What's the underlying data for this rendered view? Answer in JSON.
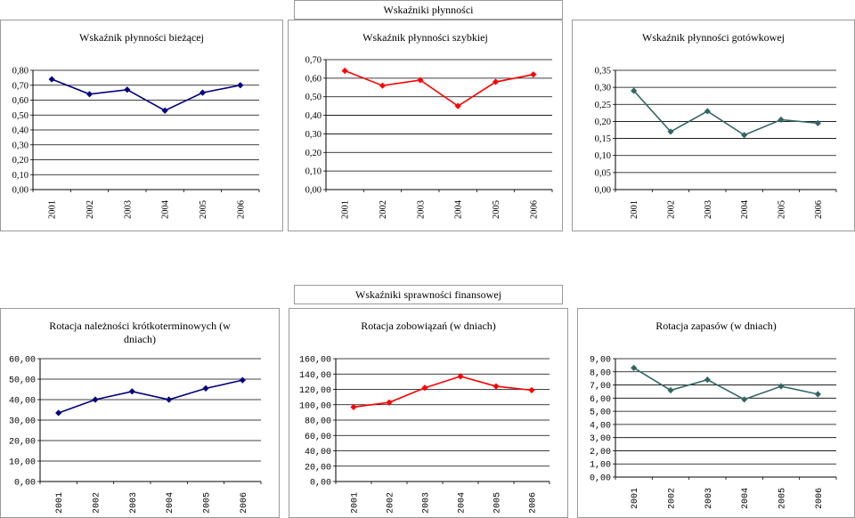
{
  "sections": [
    {
      "title": "Wskaźniki płynności"
    },
    {
      "title": "Wskaźniki sprawności finansowej"
    }
  ],
  "chart_data": [
    {
      "type": "line",
      "title": "Wskaźnik płynności bieżącej",
      "xlabel": "",
      "ylabel": "",
      "categories": [
        "2001",
        "2002",
        "2003",
        "2004",
        "2005",
        "2006"
      ],
      "values": [
        0.74,
        0.64,
        0.67,
        0.53,
        0.65,
        0.7
      ],
      "ylim": [
        0,
        0.8
      ],
      "yticks": [
        "0,00",
        "0,10",
        "0,20",
        "0,30",
        "0,40",
        "0,50",
        "0,60",
        "0,70",
        "0,80"
      ],
      "color": "#000080",
      "grid": true
    },
    {
      "type": "line",
      "title": "Wskaźnik płynności szybkiej",
      "xlabel": "",
      "ylabel": "",
      "categories": [
        "2001",
        "2002",
        "2003",
        "2004",
        "2005",
        "2006"
      ],
      "values": [
        0.64,
        0.56,
        0.59,
        0.45,
        0.58,
        0.62
      ],
      "ylim": [
        0,
        0.7
      ],
      "yticks": [
        "0,00",
        "0,10",
        "0,20",
        "0,30",
        "0,40",
        "0,50",
        "0,60",
        "0,70"
      ],
      "color": "#ff0000",
      "grid": true
    },
    {
      "type": "line",
      "title": "Wskaźnik płynności gotówkowej",
      "xlabel": "",
      "ylabel": "",
      "categories": [
        "2001",
        "2002",
        "2003",
        "2004",
        "2005",
        "2006"
      ],
      "values": [
        0.29,
        0.17,
        0.23,
        0.16,
        0.205,
        0.195
      ],
      "ylim": [
        0,
        0.35
      ],
      "yticks": [
        "0,00",
        "0,05",
        "0,10",
        "0,15",
        "0,20",
        "0,25",
        "0,30",
        "0,35"
      ],
      "color": "#336666",
      "grid": true
    },
    {
      "type": "line",
      "title": "Rotacja należności krótkoterminowych (w dniach)",
      "xlabel": "",
      "ylabel": "",
      "categories": [
        "2001",
        "2002",
        "2003",
        "2004",
        "2005",
        "2006"
      ],
      "values": [
        33.5,
        40,
        44,
        40,
        45.5,
        49.5
      ],
      "ylim": [
        0,
        60
      ],
      "yticks": [
        "0,00",
        "10,00",
        "20,00",
        "30,00",
        "40,00",
        "50,00",
        "60,00"
      ],
      "color": "#000080",
      "grid": true
    },
    {
      "type": "line",
      "title": "Rotacja zobowiązań (w dniach)",
      "xlabel": "",
      "ylabel": "",
      "categories": [
        "2001",
        "2002",
        "2003",
        "2004",
        "2005",
        "2006"
      ],
      "values": [
        97,
        103,
        122,
        137,
        124,
        119
      ],
      "ylim": [
        0,
        160
      ],
      "yticks": [
        "0,00",
        "20,00",
        "40,00",
        "60,00",
        "80,00",
        "100,00",
        "120,00",
        "140,00",
        "160,00"
      ],
      "color": "#ff0000",
      "grid": true
    },
    {
      "type": "line",
      "title": "Rotacja zapasów (w dniach)",
      "xlabel": "",
      "ylabel": "",
      "categories": [
        "2001",
        "2002",
        "2003",
        "2004",
        "2005",
        "2006"
      ],
      "values": [
        8.3,
        6.6,
        7.4,
        5.9,
        6.9,
        6.3
      ],
      "ylim": [
        0,
        9
      ],
      "yticks": [
        "0,00",
        "1,00",
        "2,00",
        "3,00",
        "4,00",
        "5,00",
        "6,00",
        "7,00",
        "8,00",
        "9,00"
      ],
      "color": "#336666",
      "grid": true
    }
  ]
}
